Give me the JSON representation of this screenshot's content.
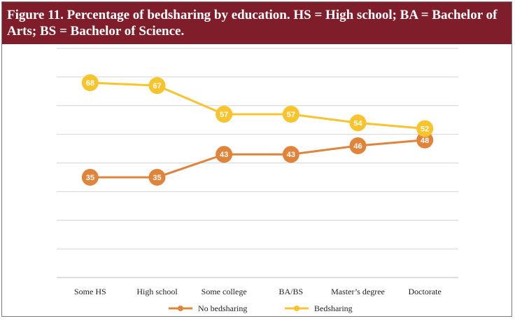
{
  "figure": {
    "title": "Figure 11. Percentage of bedsharing by education. HS = High school; BA = Bachelor of Arts; BS = Bachelor of Science."
  },
  "colors": {
    "header_bg": "#7f1d2a",
    "no_bedsharing": "#e0843b",
    "bedsharing": "#f7c42d",
    "grid": "#d4d4d4"
  },
  "chart_data": {
    "type": "line",
    "title": "Figure 11. Percentage of bedsharing by education. HS = High school; BA = Bachelor of Arts; BS = Bachelor of Science.",
    "categories": [
      "Some HS",
      "High school",
      "Some college",
      "BA/BS",
      "Master’s degree",
      "Doctorate"
    ],
    "series": [
      {
        "name": "No bedsharing",
        "values": [
          35,
          35,
          43,
          43,
          46,
          48
        ]
      },
      {
        "name": "Bedsharing",
        "values": [
          68,
          67,
          57,
          57,
          54,
          52
        ]
      }
    ],
    "ylim": [
      0,
      80
    ],
    "grid": true,
    "y_tick_labels_shown": false,
    "data_labels": true,
    "legend_position": "bottom"
  }
}
